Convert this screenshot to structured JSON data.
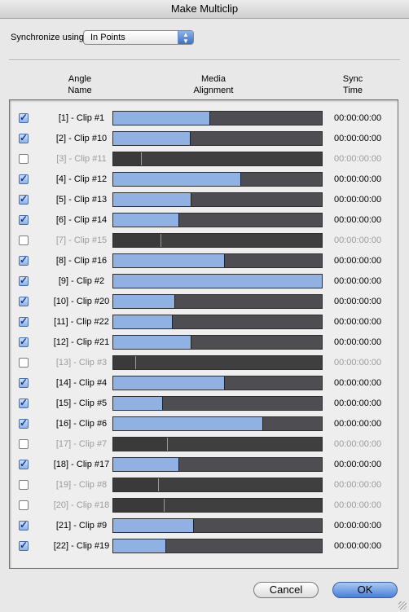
{
  "window": {
    "title": "Make Multiclip"
  },
  "sync": {
    "label": "Synchronize using:",
    "value": "In Points"
  },
  "columns": {
    "angle_name": [
      "Angle",
      "Name"
    ],
    "media_alignment": [
      "Media",
      "Alignment"
    ],
    "sync_time": [
      "Sync",
      "Time"
    ]
  },
  "clips": [
    {
      "name": "[1] - Clip #1",
      "checked": true,
      "fill": 0.465,
      "time": "00:00:00:00"
    },
    {
      "name": "[2] - Clip #10",
      "checked": true,
      "fill": 0.37,
      "time": "00:00:00:00"
    },
    {
      "name": "[3] - Clip #11",
      "checked": false,
      "fill": 0.135,
      "time": "00:00:00:00"
    },
    {
      "name": "[4] - Clip #12",
      "checked": true,
      "fill": 0.615,
      "time": "00:00:00:00"
    },
    {
      "name": "[5] - Clip #13",
      "checked": true,
      "fill": 0.375,
      "time": "00:00:00:00"
    },
    {
      "name": "[6] - Clip #14",
      "checked": true,
      "fill": 0.315,
      "time": "00:00:00:00"
    },
    {
      "name": "[7] - Clip #15",
      "checked": false,
      "fill": 0.23,
      "time": "00:00:00:00"
    },
    {
      "name": "[8] - Clip #16",
      "checked": true,
      "fill": 0.535,
      "time": "00:00:00:00"
    },
    {
      "name": "[9] - Clip #2",
      "checked": true,
      "fill": 1.0,
      "time": "00:00:00:00"
    },
    {
      "name": "[10] - Clip #20",
      "checked": true,
      "fill": 0.295,
      "time": "00:00:00:00"
    },
    {
      "name": "[11] - Clip #22",
      "checked": true,
      "fill": 0.285,
      "time": "00:00:00:00"
    },
    {
      "name": "[12] - Clip #21",
      "checked": true,
      "fill": 0.375,
      "time": "00:00:00:00"
    },
    {
      "name": "[13] - Clip #3",
      "checked": false,
      "fill": 0.11,
      "time": "00:00:00:00"
    },
    {
      "name": "[14] - Clip #4",
      "checked": true,
      "fill": 0.535,
      "time": "00:00:00:00"
    },
    {
      "name": "[15] - Clip #5",
      "checked": true,
      "fill": 0.24,
      "time": "00:00:00:00"
    },
    {
      "name": "[16] - Clip #6",
      "checked": true,
      "fill": 0.72,
      "time": "00:00:00:00"
    },
    {
      "name": "[17] - Clip #7",
      "checked": false,
      "fill": 0.26,
      "time": "00:00:00:00"
    },
    {
      "name": "[18] - Clip #17",
      "checked": true,
      "fill": 0.315,
      "time": "00:00:00:00"
    },
    {
      "name": "[19] - Clip #8",
      "checked": false,
      "fill": 0.22,
      "time": "00:00:00:00"
    },
    {
      "name": "[20] - Clip #18",
      "checked": false,
      "fill": 0.245,
      "time": "00:00:00:00"
    },
    {
      "name": "[21] - Clip #9",
      "checked": true,
      "fill": 0.385,
      "time": "00:00:00:00"
    },
    {
      "name": "[22] - Clip #19",
      "checked": true,
      "fill": 0.255,
      "time": "00:00:00:00"
    }
  ],
  "buttons": {
    "cancel": "Cancel",
    "ok": "OK"
  },
  "colors": {
    "fill_active": "#8fb2e3",
    "track": "#4e4e52",
    "accent": "#4a7fd6"
  }
}
